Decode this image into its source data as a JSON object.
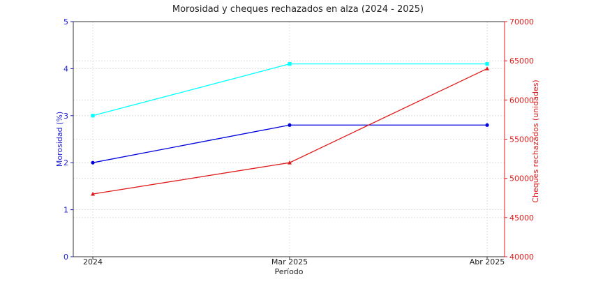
{
  "chart_data": {
    "type": "line",
    "title": "Morosidad y cheques rechazados en alza (2024 - 2025)",
    "xlabel": "Período",
    "ylabel_left": "Morosidad (%)",
    "ylabel_right": "Cheques rechazados (unidades)",
    "categories": [
      "2024",
      "Mar 2025",
      "Abr 2025"
    ],
    "ylim_left": [
      0,
      5
    ],
    "yticks_left": [
      0,
      1,
      2,
      3,
      4,
      5
    ],
    "ylim_right": [
      40000,
      70000
    ],
    "yticks_right": [
      40000,
      45000,
      50000,
      55000,
      60000,
      65000,
      70000
    ],
    "grid": true,
    "colors": {
      "left_axis": "#1a1ad6",
      "right_axis": "#e01a1a"
    },
    "series": [
      {
        "axis": "left",
        "color": "#0000dd",
        "marker": "circle",
        "values": [
          2.0,
          2.8,
          2.8
        ]
      },
      {
        "axis": "left",
        "color": "#00ffff",
        "marker": "square",
        "values": [
          3.0,
          4.1,
          4.1
        ]
      },
      {
        "axis": "right",
        "color": "#e01a1a",
        "marker": "triangle",
        "values": [
          48000,
          52000,
          64000
        ]
      }
    ]
  }
}
